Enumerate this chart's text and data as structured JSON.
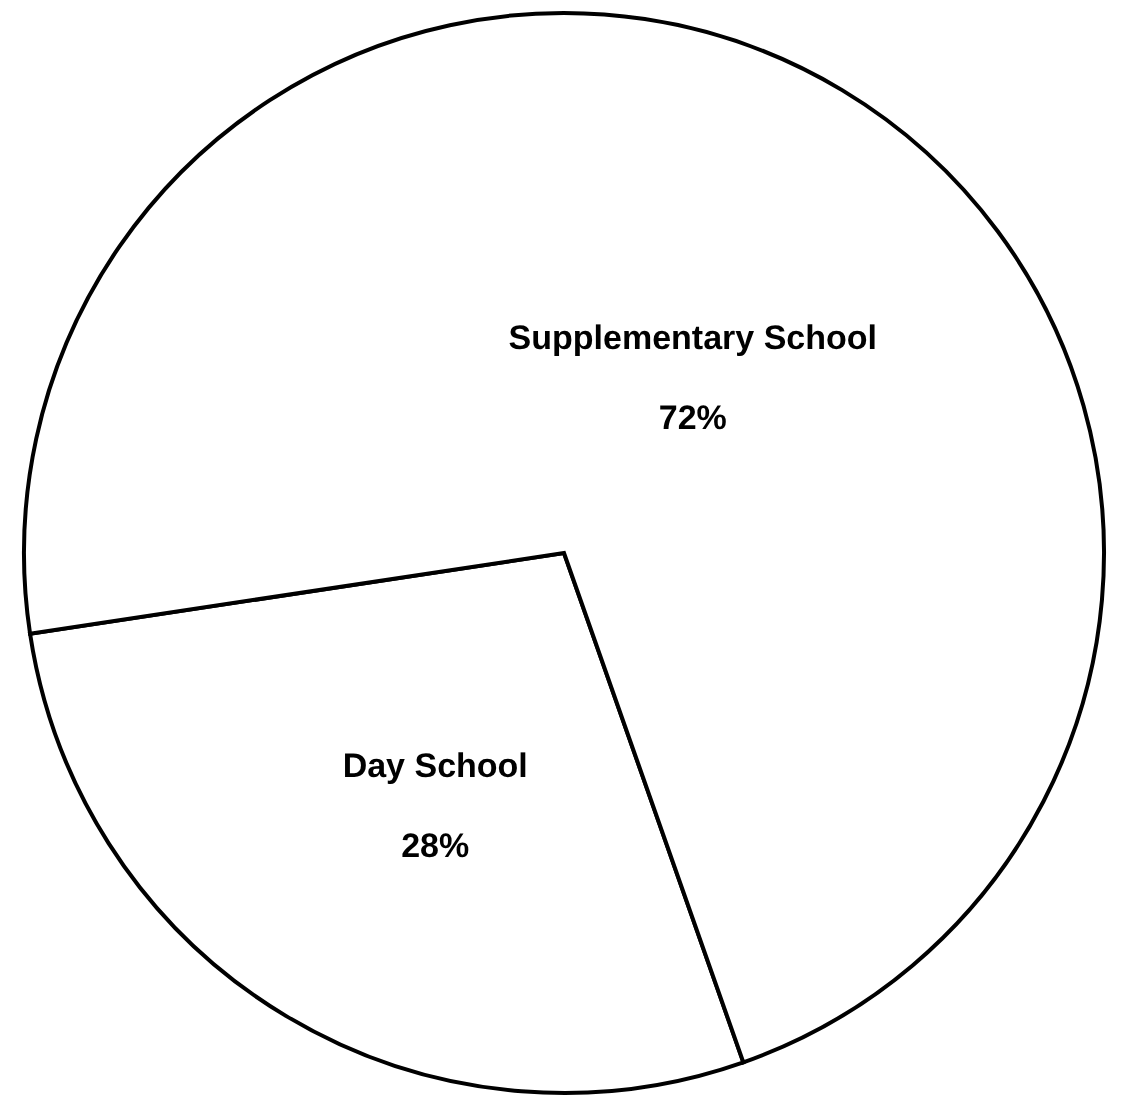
{
  "chart_data": {
    "type": "pie",
    "categories": [
      "Day School",
      "Supplementary School"
    ],
    "values": [
      28,
      72
    ],
    "value_labels": [
      "28%",
      "72%"
    ],
    "colors": [
      "#ffffff",
      "#ffffff"
    ],
    "legend": false
  }
}
